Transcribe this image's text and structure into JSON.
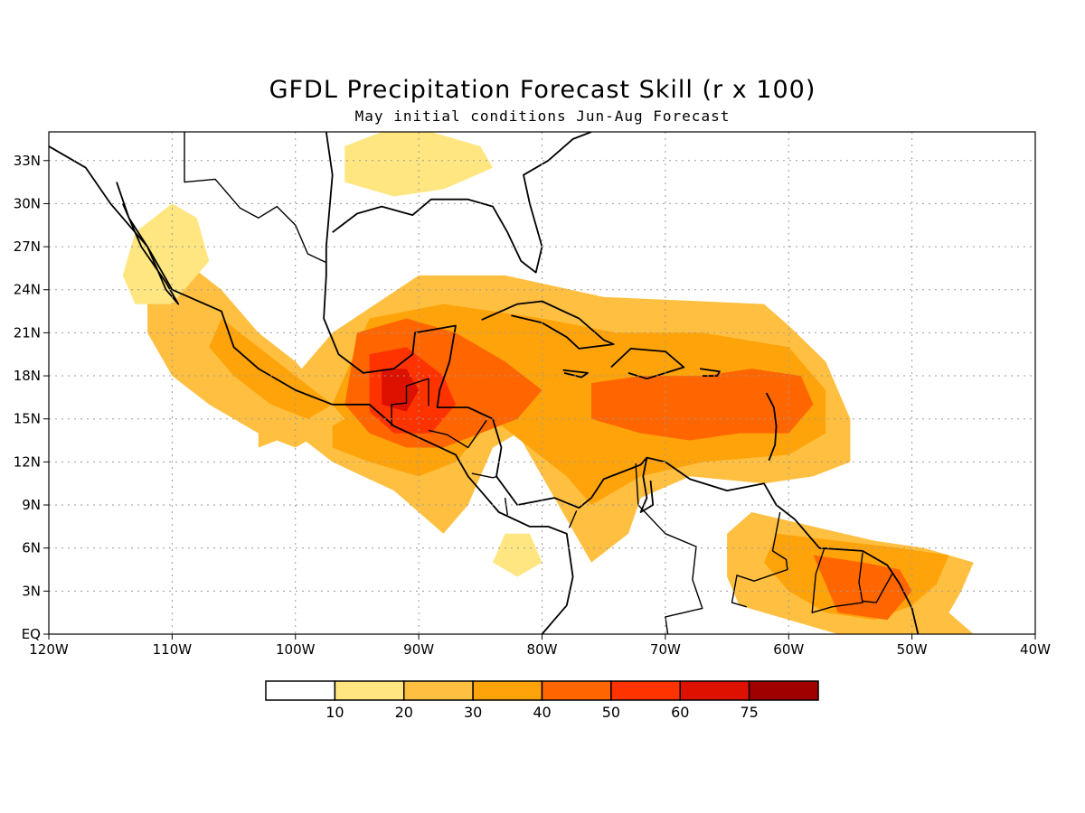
{
  "title": "GFDL Precipitation Forecast Skill (r x 100)",
  "subtitle": "May initial conditions  Jun-Aug Forecast",
  "map": {
    "lon_range": [
      -120,
      -40
    ],
    "lat_range": [
      0,
      35
    ],
    "lon_ticks": [
      {
        "value": -120,
        "label": "120W"
      },
      {
        "value": -110,
        "label": "110W"
      },
      {
        "value": -100,
        "label": "100W"
      },
      {
        "value": -90,
        "label": "90W"
      },
      {
        "value": -80,
        "label": "80W"
      },
      {
        "value": -70,
        "label": "70W"
      },
      {
        "value": -60,
        "label": "60W"
      },
      {
        "value": -50,
        "label": "50W"
      },
      {
        "value": -40,
        "label": "40W"
      }
    ],
    "lat_ticks": [
      {
        "value": 0,
        "label": "EQ"
      },
      {
        "value": 3,
        "label": "3N"
      },
      {
        "value": 6,
        "label": "6N"
      },
      {
        "value": 9,
        "label": "9N"
      },
      {
        "value": 12,
        "label": "12N"
      },
      {
        "value": 15,
        "label": "15N"
      },
      {
        "value": 18,
        "label": "18N"
      },
      {
        "value": 21,
        "label": "21N"
      },
      {
        "value": 24,
        "label": "24N"
      },
      {
        "value": 27,
        "label": "27N"
      },
      {
        "value": 30,
        "label": "30N"
      },
      {
        "value": 33,
        "label": "33N"
      }
    ],
    "grid": "dotted"
  },
  "colorbar": {
    "colors": [
      "#ffffff",
      "#ffe680",
      "#ffbf40",
      "#ffa30a",
      "#ff6600",
      "#ff3300",
      "#dd1100",
      "#a00000"
    ],
    "labels": [
      "10",
      "20",
      "30",
      "40",
      "50",
      "60",
      "75"
    ]
  },
  "skill_regions": [
    {
      "name": "caribbean-core-20",
      "level": 2,
      "pts": [
        [
          -90,
          25
        ],
        [
          -83,
          25
        ],
        [
          -75,
          23.5
        ],
        [
          -62,
          23
        ],
        [
          -60,
          21.5
        ],
        [
          -57,
          19
        ],
        [
          -56,
          17
        ],
        [
          -55,
          15
        ],
        [
          -55,
          12
        ],
        [
          -58,
          11
        ],
        [
          -62,
          10.5
        ],
        [
          -68,
          11
        ],
        [
          -72,
          9.5
        ],
        [
          -73,
          7
        ],
        [
          -76,
          5
        ],
        [
          -78,
          8
        ],
        [
          -80,
          11
        ],
        [
          -82,
          14
        ],
        [
          -84,
          13
        ],
        [
          -86,
          9
        ],
        [
          -88,
          7
        ],
        [
          -92,
          10
        ],
        [
          -97,
          12
        ],
        [
          -100,
          14
        ],
        [
          -103,
          13
        ],
        [
          -103,
          15
        ],
        [
          -100,
          18
        ],
        [
          -97,
          21
        ]
      ]
    },
    {
      "name": "central-blob-30",
      "level": 3,
      "pts": [
        [
          -94,
          22
        ],
        [
          -88,
          23
        ],
        [
          -80,
          22
        ],
        [
          -74,
          21
        ],
        [
          -67,
          21
        ],
        [
          -60,
          20
        ],
        [
          -57,
          17
        ],
        [
          -57,
          14
        ],
        [
          -60,
          12.5
        ],
        [
          -67,
          12
        ],
        [
          -72,
          11
        ],
        [
          -76,
          9
        ],
        [
          -78,
          11
        ],
        [
          -81,
          13
        ],
        [
          -84,
          15
        ],
        [
          -87,
          12
        ],
        [
          -90,
          11
        ],
        [
          -94,
          12
        ],
        [
          -97,
          13
        ],
        [
          -97,
          16
        ],
        [
          -95,
          20
        ]
      ]
    },
    {
      "name": "yucatan-40",
      "level": 4,
      "pts": [
        [
          -95,
          21
        ],
        [
          -91,
          22
        ],
        [
          -87,
          21
        ],
        [
          -83,
          19
        ],
        [
          -80,
          17
        ],
        [
          -82,
          15
        ],
        [
          -85,
          14
        ],
        [
          -88,
          13
        ],
        [
          -91,
          13
        ],
        [
          -94,
          14
        ],
        [
          -96,
          16
        ]
      ]
    },
    {
      "name": "hispaniola-40",
      "level": 4,
      "pts": [
        [
          -76,
          17.5
        ],
        [
          -72,
          18
        ],
        [
          -67,
          18
        ],
        [
          -63,
          18.5
        ],
        [
          -59,
          18
        ],
        [
          -58,
          16
        ],
        [
          -60,
          14
        ],
        [
          -64,
          14
        ],
        [
          -68,
          13.5
        ],
        [
          -72,
          14
        ],
        [
          -76,
          15
        ]
      ]
    },
    {
      "name": "gulf-honduras-50",
      "level": 5,
      "pts": [
        [
          -94,
          19.5
        ],
        [
          -91,
          20
        ],
        [
          -88,
          18
        ],
        [
          -87,
          16
        ],
        [
          -89,
          14
        ],
        [
          -92,
          14
        ],
        [
          -94,
          15.5
        ]
      ]
    },
    {
      "name": "honduras-60",
      "level": 6,
      "pts": [
        [
          -93,
          18.5
        ],
        [
          -91,
          18.5
        ],
        [
          -90,
          17
        ],
        [
          -91,
          15.5
        ],
        [
          -93,
          16
        ]
      ]
    },
    {
      "name": "mexico-west-20",
      "level": 2,
      "pts": [
        [
          -112,
          24
        ],
        [
          -109,
          26
        ],
        [
          -106,
          24
        ],
        [
          -103,
          21
        ],
        [
          -100,
          19
        ],
        [
          -98,
          17
        ],
        [
          -96,
          15
        ],
        [
          -100,
          13
        ],
        [
          -103,
          14
        ],
        [
          -107,
          16
        ],
        [
          -110,
          18
        ],
        [
          -112,
          21
        ]
      ]
    },
    {
      "name": "mexico-coast-30",
      "level": 3,
      "pts": [
        [
          -106,
          22
        ],
        [
          -103,
          20
        ],
        [
          -100,
          18
        ],
        [
          -97,
          16
        ],
        [
          -99,
          15
        ],
        [
          -102,
          16
        ],
        [
          -105,
          18
        ],
        [
          -107,
          20
        ]
      ]
    },
    {
      "name": "guianas-20",
      "level": 2,
      "pts": [
        [
          -63,
          8.5
        ],
        [
          -58,
          7.5
        ],
        [
          -53,
          6.5
        ],
        [
          -49,
          6
        ],
        [
          -45,
          5
        ],
        [
          -46,
          3
        ],
        [
          -47,
          1.5
        ],
        [
          -45,
          0
        ],
        [
          -56,
          0
        ],
        [
          -60,
          1
        ],
        [
          -64,
          2
        ],
        [
          -65,
          4
        ],
        [
          -65,
          7
        ]
      ]
    },
    {
      "name": "guianas-30",
      "level": 3,
      "pts": [
        [
          -61,
          7
        ],
        [
          -56,
          6.5
        ],
        [
          -51,
          6
        ],
        [
          -47,
          5.5
        ],
        [
          -48,
          3.5
        ],
        [
          -50,
          2
        ],
        [
          -53,
          1
        ],
        [
          -57,
          1.5
        ],
        [
          -60,
          3
        ],
        [
          -62,
          5
        ]
      ]
    },
    {
      "name": "guianas-40",
      "level": 4,
      "pts": [
        [
          -58,
          5.5
        ],
        [
          -54,
          5
        ],
        [
          -51,
          4.5
        ],
        [
          -50,
          3
        ],
        [
          -52,
          1
        ],
        [
          -56,
          1.5
        ],
        [
          -57,
          3.5
        ]
      ]
    },
    {
      "name": "texas-10",
      "level": 1,
      "pts": [
        [
          -96,
          34
        ],
        [
          -93,
          35
        ],
        [
          -89,
          35
        ],
        [
          -85,
          34
        ],
        [
          -84,
          32.5
        ],
        [
          -88,
          31
        ],
        [
          -92,
          30.5
        ],
        [
          -96,
          31.5
        ]
      ]
    },
    {
      "name": "baja-10",
      "level": 1,
      "pts": [
        [
          -113,
          28
        ],
        [
          -110,
          30
        ],
        [
          -108,
          29
        ],
        [
          -107,
          26
        ],
        [
          -110,
          23
        ],
        [
          -113,
          23
        ],
        [
          -114,
          25
        ]
      ]
    },
    {
      "name": "panama-10",
      "level": 1,
      "pts": [
        [
          -83,
          7
        ],
        [
          -81,
          7
        ],
        [
          -80,
          5
        ],
        [
          -82,
          4
        ],
        [
          -84,
          5
        ]
      ]
    }
  ],
  "legend_note": ""
}
